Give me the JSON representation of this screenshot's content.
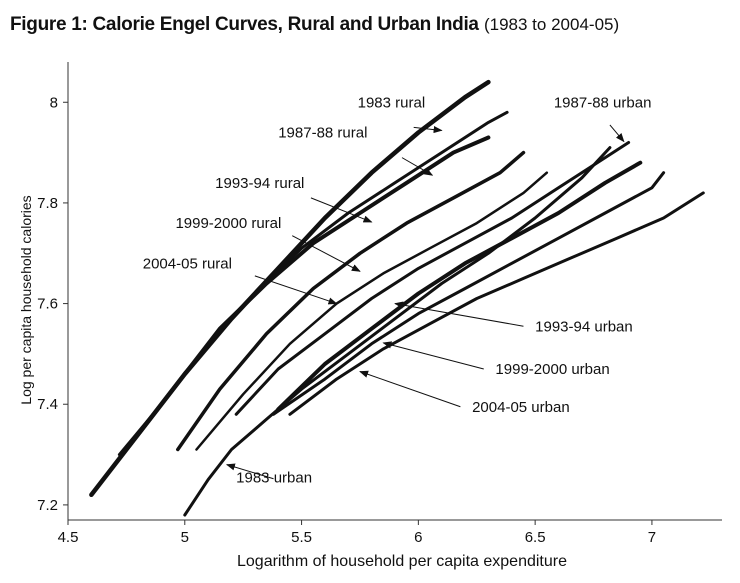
{
  "figure": {
    "title_bold": "Figure 1: Calorie Engel Curves, Rural and Urban India",
    "title_rest": "(1983 to 2004-05)"
  },
  "chart_data": {
    "type": "line",
    "title": "Figure 1: Calorie Engel Curves, Rural and Urban India (1983 to 2004-05)",
    "xlabel": "Logarithm  of household per capita expenditure",
    "ylabel": "Log per capita household calories",
    "xlim": [
      4.5,
      7.3
    ],
    "ylim": [
      7.17,
      8.08
    ],
    "xticks": [
      4.5,
      5,
      5.5,
      6,
      6.5,
      7
    ],
    "xtick_labels": [
      "4.5",
      "5",
      "5.5",
      "6",
      "6.5",
      "7"
    ],
    "yticks": [
      7.2,
      7.4,
      7.6,
      7.8,
      8.0
    ],
    "ytick_labels": [
      "7.2",
      "7.4",
      "7.6",
      "7.8",
      "8"
    ],
    "grid": false,
    "series": [
      {
        "name": "1983 rural",
        "width": 4.5,
        "x": [
          4.6,
          4.8,
          5.0,
          5.2,
          5.4,
          5.6,
          5.8,
          6.0,
          6.2,
          6.3
        ],
        "y": [
          7.22,
          7.34,
          7.46,
          7.57,
          7.67,
          7.77,
          7.86,
          7.94,
          8.01,
          8.04
        ]
      },
      {
        "name": "1987-88 rural",
        "width": 3,
        "x": [
          4.72,
          4.9,
          5.1,
          5.3,
          5.5,
          5.7,
          5.9,
          6.1,
          6.3,
          6.38
        ],
        "y": [
          7.3,
          7.4,
          7.52,
          7.62,
          7.71,
          7.78,
          7.84,
          7.9,
          7.96,
          7.98
        ]
      },
      {
        "name": "1993-94 rural",
        "width": 4,
        "x": [
          4.75,
          4.95,
          5.15,
          5.35,
          5.55,
          5.75,
          5.95,
          6.15,
          6.3
        ],
        "y": [
          7.31,
          7.43,
          7.55,
          7.64,
          7.72,
          7.78,
          7.84,
          7.9,
          7.93
        ]
      },
      {
        "name": "1999-2000 rural",
        "width": 3.5,
        "x": [
          4.97,
          5.15,
          5.35,
          5.55,
          5.75,
          5.95,
          6.15,
          6.35,
          6.45
        ],
        "y": [
          7.31,
          7.43,
          7.54,
          7.63,
          7.7,
          7.76,
          7.81,
          7.86,
          7.9
        ]
      },
      {
        "name": "2004-05 rural",
        "width": 2.5,
        "x": [
          5.05,
          5.25,
          5.45,
          5.65,
          5.85,
          6.05,
          6.25,
          6.45,
          6.55
        ],
        "y": [
          7.31,
          7.42,
          7.52,
          7.6,
          7.66,
          7.71,
          7.76,
          7.82,
          7.86
        ]
      },
      {
        "name": "1987-88 urban",
        "width": 3,
        "x": [
          5.22,
          5.4,
          5.6,
          5.8,
          6.0,
          6.2,
          6.4,
          6.6,
          6.8,
          6.9
        ],
        "y": [
          7.38,
          7.47,
          7.54,
          7.61,
          7.67,
          7.72,
          7.77,
          7.83,
          7.89,
          7.92
        ]
      },
      {
        "name": "1993-94 urban",
        "width": 4,
        "x": [
          5.4,
          5.6,
          5.8,
          6.0,
          6.2,
          6.4,
          6.6,
          6.8,
          6.95
        ],
        "y": [
          7.39,
          7.48,
          7.55,
          7.62,
          7.68,
          7.73,
          7.78,
          7.84,
          7.88
        ]
      },
      {
        "name": "1999-2000 urban",
        "width": 3,
        "x": [
          5.38,
          5.6,
          5.8,
          6.0,
          6.2,
          6.4,
          6.6,
          6.8,
          7.0,
          7.05
        ],
        "y": [
          7.38,
          7.45,
          7.52,
          7.58,
          7.63,
          7.68,
          7.73,
          7.78,
          7.83,
          7.86
        ]
      },
      {
        "name": "2004-05 urban",
        "width": 3,
        "x": [
          5.45,
          5.65,
          5.85,
          6.05,
          6.25,
          6.45,
          6.65,
          6.85,
          7.05,
          7.22
        ],
        "y": [
          7.38,
          7.45,
          7.51,
          7.56,
          7.61,
          7.65,
          7.69,
          7.73,
          7.77,
          7.82
        ]
      },
      {
        "name": "1983 urban",
        "width": 3,
        "x": [
          5.0,
          5.1,
          5.2,
          5.35,
          5.5,
          5.7,
          5.9,
          6.1,
          6.3,
          6.5,
          6.7,
          6.82
        ],
        "y": [
          7.18,
          7.25,
          7.31,
          7.37,
          7.43,
          7.5,
          7.57,
          7.64,
          7.7,
          7.77,
          7.85,
          7.91
        ]
      }
    ],
    "annotations": [
      {
        "text": "1983 rural",
        "tx": 5.74,
        "ty": 7.99,
        "ax": 5.98,
        "ay": 7.95,
        "hx": 6.1,
        "hy": 7.944
      },
      {
        "text": "1987-88 rural",
        "tx": 5.4,
        "ty": 7.93,
        "ax": 5.93,
        "ay": 7.89,
        "hx": 6.06,
        "hy": 7.855
      },
      {
        "text": "1993-94 rural",
        "tx": 5.13,
        "ty": 7.83,
        "ax": 5.54,
        "ay": 7.81,
        "hx": 5.8,
        "hy": 7.762
      },
      {
        "text": "1999-2000 rural",
        "tx": 4.96,
        "ty": 7.75,
        "ax": 5.46,
        "ay": 7.735,
        "hx": 5.75,
        "hy": 7.664
      },
      {
        "text": "2004-05 rural",
        "tx": 4.82,
        "ty": 7.67,
        "ax": 5.3,
        "ay": 7.655,
        "hx": 5.65,
        "hy": 7.6
      },
      {
        "text": "1987-88 urban",
        "tx": 6.58,
        "ty": 7.99,
        "ax": 6.82,
        "ay": 7.955,
        "hx": 6.88,
        "hy": 7.922
      },
      {
        "text": "1993-94 urban",
        "tx": 6.5,
        "ty": 7.545,
        "ax": 6.45,
        "ay": 7.555,
        "hx": 5.9,
        "hy": 7.6
      },
      {
        "text": "1999-2000 urban",
        "tx": 6.33,
        "ty": 7.46,
        "ax": 6.28,
        "ay": 7.47,
        "hx": 5.85,
        "hy": 7.522
      },
      {
        "text": "2004-05 urban",
        "tx": 6.23,
        "ty": 7.385,
        "ax": 6.18,
        "ay": 7.395,
        "hx": 5.75,
        "hy": 7.465
      },
      {
        "text": "1983 urban",
        "tx": 5.22,
        "ty": 7.245,
        "ax": 5.38,
        "ay": 7.252,
        "hx": 5.18,
        "hy": 7.28
      }
    ]
  }
}
